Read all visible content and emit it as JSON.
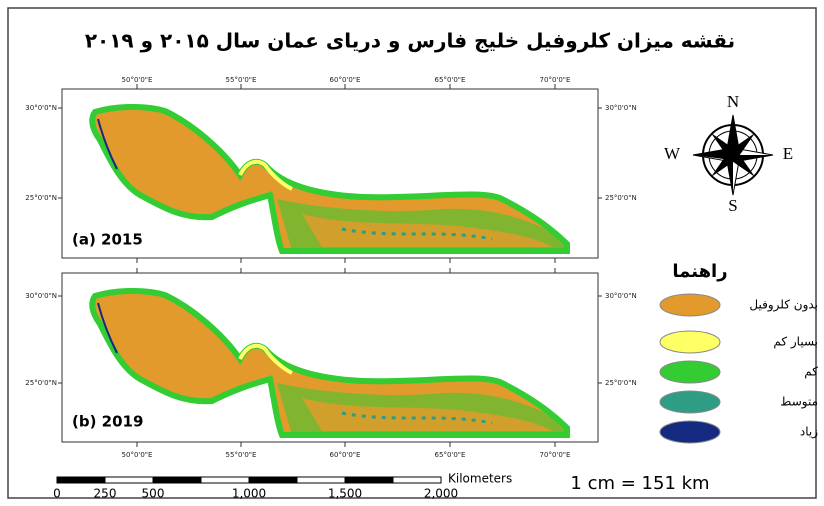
{
  "title": "نقشه میزان کلروفیل خلیج فارس و دریای عمان سال ۲۰۱۵ و ۲۰۱۹",
  "panels": [
    {
      "label": "(a) 2015"
    },
    {
      "label": "(b) 2019"
    }
  ],
  "longitude_labels": [
    "50°0'0\"E",
    "55°0'0\"E",
    "60°0'0\"E",
    "65°0'0\"E",
    "70°0'0\"E"
  ],
  "latitude_labels": [
    "30°0'0\"N",
    "25°0'0\"N"
  ],
  "compass": {
    "north": "N",
    "west": "W",
    "east": "E",
    "south": "S"
  },
  "legend": {
    "title": "راهنما",
    "items": [
      {
        "label": "بدون کلروفیل",
        "color": "#e39a2c"
      },
      {
        "label": "بسیار کم",
        "color": "#ffff66"
      },
      {
        "label": "کم",
        "color": "#33cc33"
      },
      {
        "label": "متوسط",
        "color": "#2f9c84"
      },
      {
        "label": "زیاد",
        "color": "#142a80"
      }
    ]
  },
  "scale": {
    "unit": "Kilometers",
    "ticks": [
      "0",
      "250",
      "500",
      "1,000",
      "1,500",
      "2,000"
    ],
    "ratio": "1 cm = 151 km"
  }
}
